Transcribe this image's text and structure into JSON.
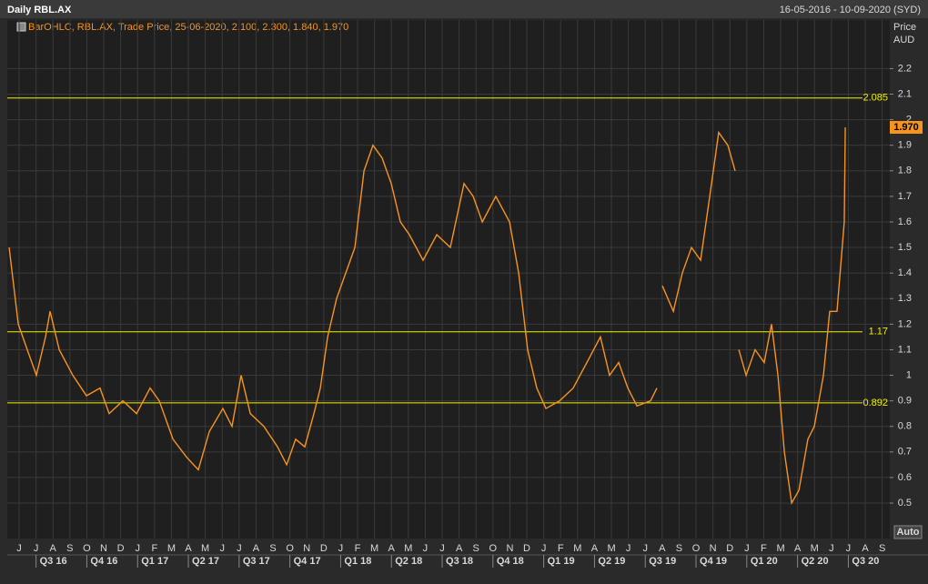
{
  "chart_data": {
    "type": "line",
    "title": "Daily RBL.AX",
    "date_range": "16-05-2016 - 10-09-2020 (SYD)",
    "legend_text": "BarOHLC, RBL.AX, Trade Price, 25-06-2020, 2.100, 2.300, 1.840, 1.970",
    "y_axis_title": "Price",
    "y_axis_unit": "AUD",
    "scale_button": "Auto",
    "xlim": [
      -0.7,
      51.45
    ],
    "ylim": [
      0.404,
      2.39
    ],
    "yticks": [
      0.5,
      0.6,
      0.7,
      0.8,
      0.9,
      1,
      1.1,
      1.2,
      1.3,
      1.4,
      1.5,
      1.6,
      1.7,
      1.8,
      1.9,
      2,
      2.1,
      2.2
    ],
    "xticks": [
      {
        "value": 0,
        "label": "J"
      },
      {
        "value": 1,
        "label": "J"
      },
      {
        "value": 2,
        "label": "A"
      },
      {
        "value": 3,
        "label": "S"
      },
      {
        "value": 4,
        "label": "O"
      },
      {
        "value": 5,
        "label": "N"
      },
      {
        "value": 6,
        "label": "D"
      },
      {
        "value": 7,
        "label": "J"
      },
      {
        "value": 8,
        "label": "F"
      },
      {
        "value": 9,
        "label": "M"
      },
      {
        "value": 10,
        "label": "A"
      },
      {
        "value": 11,
        "label": "M"
      },
      {
        "value": 12,
        "label": "J"
      },
      {
        "value": 13,
        "label": "J"
      },
      {
        "value": 14,
        "label": "A"
      },
      {
        "value": 15,
        "label": "S"
      },
      {
        "value": 16,
        "label": "O"
      },
      {
        "value": 17,
        "label": "N"
      },
      {
        "value": 18,
        "label": "D"
      },
      {
        "value": 19,
        "label": "J"
      },
      {
        "value": 20,
        "label": "F"
      },
      {
        "value": 21,
        "label": "M"
      },
      {
        "value": 22,
        "label": "A"
      },
      {
        "value": 23,
        "label": "M"
      },
      {
        "value": 24,
        "label": "J"
      },
      {
        "value": 25,
        "label": "J"
      },
      {
        "value": 26,
        "label": "A"
      },
      {
        "value": 27,
        "label": "S"
      },
      {
        "value": 28,
        "label": "O"
      },
      {
        "value": 29,
        "label": "N"
      },
      {
        "value": 30,
        "label": "D"
      },
      {
        "value": 31,
        "label": "J"
      },
      {
        "value": 32,
        "label": "F"
      },
      {
        "value": 33,
        "label": "M"
      },
      {
        "value": 34,
        "label": "A"
      },
      {
        "value": 35,
        "label": "M"
      },
      {
        "value": 36,
        "label": "J"
      },
      {
        "value": 37,
        "label": "J"
      },
      {
        "value": 38,
        "label": "A"
      },
      {
        "value": 39,
        "label": "S"
      },
      {
        "value": 40,
        "label": "O"
      },
      {
        "value": 41,
        "label": "N"
      },
      {
        "value": 42,
        "label": "D"
      },
      {
        "value": 43,
        "label": "J"
      },
      {
        "value": 44,
        "label": "F"
      },
      {
        "value": 45,
        "label": "M"
      },
      {
        "value": 46,
        "label": "A"
      },
      {
        "value": 47,
        "label": "M"
      },
      {
        "value": 48,
        "label": "J"
      },
      {
        "value": 49,
        "label": "J"
      },
      {
        "value": 50,
        "label": "A"
      },
      {
        "value": 51,
        "label": "S"
      }
    ],
    "quarter_ticks": [
      {
        "value": 1,
        "label": "Q3 16"
      },
      {
        "value": 4,
        "label": "Q4 16"
      },
      {
        "value": 7,
        "label": "Q1 17"
      },
      {
        "value": 10,
        "label": "Q2 17"
      },
      {
        "value": 13,
        "label": "Q3 17"
      },
      {
        "value": 16,
        "label": "Q4 17"
      },
      {
        "value": 19,
        "label": "Q1 18"
      },
      {
        "value": 22,
        "label": "Q2 18"
      },
      {
        "value": 25,
        "label": "Q3 18"
      },
      {
        "value": 28,
        "label": "Q4 18"
      },
      {
        "value": 31,
        "label": "Q1 19"
      },
      {
        "value": 34,
        "label": "Q2 19"
      },
      {
        "value": 37,
        "label": "Q3 19"
      },
      {
        "value": 40,
        "label": "Q4 19"
      },
      {
        "value": 43,
        "label": "Q1 20"
      },
      {
        "value": 46,
        "label": "Q2 20"
      },
      {
        "value": 49,
        "label": "Q3 20"
      }
    ],
    "grid": true,
    "hlines": [
      2.085,
      1.17,
      0.892
    ],
    "hline_color": "#f0f000",
    "last_price": {
      "value": 1.97,
      "label": "1.970"
    },
    "x": [
      -0.59,
      -0.32,
      -0.05,
      0.48,
      1.02,
      1.56,
      1.83,
      2.37,
      3.17,
      3.98,
      4.78,
      5.32,
      6.13,
      6.94,
      7.74,
      8.28,
      9.09,
      9.89,
      10.59,
      11.24,
      12.04,
      12.58,
      13.12,
      13.66,
      14.46,
      15.27,
      15.81,
      16.34,
      16.88,
      17.42,
      17.8,
      18.23,
      18.76,
      19.3,
      19.84,
      20.38,
      20.91,
      21.45,
      21.99,
      22.53,
      23.06,
      23.87,
      24.68,
      25.48,
      26.29,
      26.83,
      27.37,
      28.17,
      28.98,
      29.52,
      30.05,
      30.59,
      31.13,
      31.94,
      32.74,
      33.55,
      34.35,
      34.89,
      35.43,
      35.97,
      36.51,
      37.31,
      37.69,
      37.9,
      38.01,
      38.66,
      39.19,
      39.73,
      40.27,
      40.81,
      41.34,
      41.88,
      42.31,
      42.4,
      42.53,
      42.96,
      43.49,
      44.03,
      44.46,
      44.84,
      45.22,
      45.65,
      46.08,
      46.61,
      46.99,
      47.53,
      47.9,
      48.33,
      48.76,
      48.82
    ],
    "series": [
      {
        "name": "RBL.AX",
        "color": "#f7941d",
        "values": [
          1.5,
          1.35,
          1.2,
          1.1,
          1.0,
          1.15,
          1.25,
          1.1,
          1.0,
          0.92,
          0.95,
          0.85,
          0.9,
          0.85,
          0.95,
          0.9,
          0.75,
          0.68,
          0.63,
          0.78,
          0.87,
          0.8,
          1.0,
          0.85,
          0.8,
          0.72,
          0.65,
          0.75,
          0.72,
          0.85,
          0.95,
          1.15,
          1.3,
          1.4,
          1.5,
          1.8,
          1.9,
          1.85,
          1.75,
          1.6,
          1.55,
          1.45,
          1.55,
          1.5,
          1.75,
          1.7,
          1.6,
          1.7,
          1.6,
          1.4,
          1.1,
          0.95,
          0.87,
          0.9,
          0.95,
          1.05,
          1.15,
          1.0,
          1.05,
          0.95,
          0.88,
          0.9,
          0.95,
          null,
          1.35,
          1.25,
          1.4,
          1.5,
          1.45,
          1.7,
          1.95,
          1.9,
          1.8,
          null,
          1.1,
          1.0,
          1.1,
          1.05,
          1.2,
          1.0,
          0.7,
          0.5,
          0.55,
          0.75,
          0.8,
          1.0,
          1.25,
          1.25,
          1.6,
          1.97
        ]
      }
    ]
  }
}
